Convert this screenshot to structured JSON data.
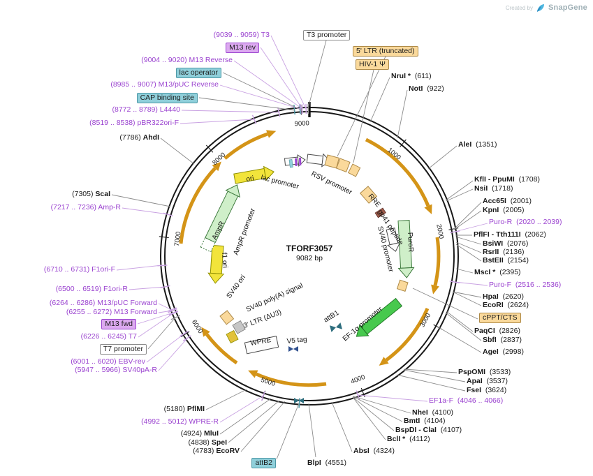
{
  "watermark": {
    "created_by": "Created by",
    "brand": "SnapGene"
  },
  "plasmid": {
    "name": "TFORF3057",
    "size_label": "9082 bp"
  },
  "tick_labels": [
    "1000",
    "2000",
    "3000",
    "4000",
    "5000",
    "6000",
    "7000",
    "8000",
    "9000"
  ],
  "colors": {
    "primer": "#9B44D0",
    "primer_line": "#C9A2E2",
    "enzyme": "#1A1A1A",
    "tan": "#FAD99B",
    "tan_border": "#AE8A48",
    "teal": "#8FCFDA",
    "teal_border": "#4E98A6",
    "purple_box": "#DCA9F0",
    "purple_box_border": "#9B44D0",
    "white_box_border": "#8C8C8C",
    "gold": "#D49417",
    "green": "#47C94E",
    "green_border": "#237A28",
    "pale_green": "#CFEFC9",
    "pale_green_border": "#3E7A3E",
    "yellow": "#F2E43B",
    "yellow_border": "#8E8E00",
    "maroon": "#9C5B4A",
    "att_site": "#2E6E7E",
    "v5": "#31518F"
  },
  "inner_labels": [
    {
      "text": "ori"
    },
    {
      "text": "lac promoter"
    },
    {
      "text": "RSV promoter"
    },
    {
      "text": "RRE"
    },
    {
      "text": "gp41 peptide"
    },
    {
      "text": "SV40 promoter"
    },
    {
      "text": "PuroR"
    },
    {
      "text": "EF-1α promoter"
    },
    {
      "text": "attB1"
    },
    {
      "text": "V5 tag"
    },
    {
      "text": "WPRE"
    },
    {
      "text": "3' LTR (ΔU3)"
    },
    {
      "text": "SV40 poly(A) signal"
    },
    {
      "text": "SV40 ori"
    },
    {
      "text": "f1 ori"
    },
    {
      "text": "AmpR"
    },
    {
      "text": "AmpR promoter"
    }
  ],
  "callouts": [
    {
      "id": "t3",
      "type": "primer",
      "parts": [
        {
          "text": "(9039 .. 9059) ",
          "kind": "coord"
        },
        {
          "text": "T3",
          "kind": "name"
        }
      ]
    },
    {
      "id": "m13-rev-box",
      "type": "box",
      "box": "purple",
      "parts": [
        {
          "text": "M13 rev",
          "kind": "name"
        }
      ]
    },
    {
      "id": "m13-reverse",
      "type": "primer",
      "parts": [
        {
          "text": "(9004 .. 9020) ",
          "kind": "coord"
        },
        {
          "text": "M13 Reverse",
          "kind": "name"
        }
      ]
    },
    {
      "id": "lac-operator-box",
      "type": "box",
      "box": "teal",
      "parts": [
        {
          "text": "lac operator",
          "kind": "name"
        }
      ]
    },
    {
      "id": "m13-puc-reverse",
      "type": "primer",
      "parts": [
        {
          "text": "(8985 .. 9007) ",
          "kind": "coord"
        },
        {
          "text": "M13/pUC Reverse",
          "kind": "name"
        }
      ]
    },
    {
      "id": "cap-binding-site-box",
      "type": "box",
      "box": "teal",
      "parts": [
        {
          "text": "CAP binding site",
          "kind": "name"
        }
      ]
    },
    {
      "id": "l4440",
      "type": "primer",
      "parts": [
        {
          "text": "(8772 .. 8789) ",
          "kind": "coord"
        },
        {
          "text": "L4440",
          "kind": "name"
        }
      ]
    },
    {
      "id": "pbr322ori-f",
      "type": "primer",
      "parts": [
        {
          "text": "(8519 .. 8538) ",
          "kind": "coord"
        },
        {
          "text": "pBR322ori-F",
          "kind": "name"
        }
      ]
    },
    {
      "id": "ahdi",
      "type": "enzyme",
      "parts": [
        {
          "text": "(7786) ",
          "kind": "coord"
        },
        {
          "text": "AhdI",
          "kind": "name"
        }
      ]
    },
    {
      "id": "scai",
      "type": "enzyme",
      "parts": [
        {
          "text": "(7305) ",
          "kind": "coord"
        },
        {
          "text": "ScaI",
          "kind": "name"
        }
      ]
    },
    {
      "id": "amp-r",
      "type": "primer",
      "parts": [
        {
          "text": "(7217 .. 7236) ",
          "kind": "coord"
        },
        {
          "text": "Amp-R",
          "kind": "name"
        }
      ]
    },
    {
      "id": "f1ori-f",
      "type": "primer",
      "parts": [
        {
          "text": "(6710 .. 6731) ",
          "kind": "coord"
        },
        {
          "text": "F1ori-F",
          "kind": "name"
        }
      ]
    },
    {
      "id": "f1ori-r",
      "type": "primer",
      "parts": [
        {
          "text": "(6500 .. 6519) ",
          "kind": "coord"
        },
        {
          "text": "F1ori-R",
          "kind": "name"
        }
      ]
    },
    {
      "id": "m13-puc-forward",
      "type": "primer",
      "parts": [
        {
          "text": "(6264 .. 6286) ",
          "kind": "coord"
        },
        {
          "text": "M13/pUC Forward",
          "kind": "name"
        }
      ]
    },
    {
      "id": "m13-forward",
      "type": "primer",
      "parts": [
        {
          "text": "(6255 .. 6272) ",
          "kind": "coord"
        },
        {
          "text": "M13 Forward",
          "kind": "name"
        }
      ]
    },
    {
      "id": "m13-fwd-box",
      "type": "box",
      "box": "purple",
      "parts": [
        {
          "text": "M13 fwd",
          "kind": "name"
        }
      ]
    },
    {
      "id": "t7",
      "type": "primer",
      "parts": [
        {
          "text": "(6226 .. 6245) ",
          "kind": "coord"
        },
        {
          "text": "T7",
          "kind": "name"
        }
      ]
    },
    {
      "id": "t7-promoter-box",
      "type": "box",
      "box": "white",
      "parts": [
        {
          "text": "T7 promoter",
          "kind": "name"
        }
      ]
    },
    {
      "id": "ebv-rev",
      "type": "primer",
      "parts": [
        {
          "text": "(6001 .. 6020) ",
          "kind": "coord"
        },
        {
          "text": "EBV-rev",
          "kind": "name"
        }
      ]
    },
    {
      "id": "sv40pa-r",
      "type": "primer",
      "parts": [
        {
          "text": "(5947 .. 5966) ",
          "kind": "coord"
        },
        {
          "text": "SV40pA-R",
          "kind": "name"
        }
      ]
    },
    {
      "id": "pflmi",
      "type": "enzyme",
      "parts": [
        {
          "text": "(5180) ",
          "kind": "coord"
        },
        {
          "text": "PflMI",
          "kind": "name"
        }
      ]
    },
    {
      "id": "wpre-r",
      "type": "primer",
      "parts": [
        {
          "text": "(4992 .. 5012) ",
          "kind": "coord"
        },
        {
          "text": "WPRE-R",
          "kind": "name"
        }
      ]
    },
    {
      "id": "mlui",
      "type": "enzyme",
      "parts": [
        {
          "text": "(4924) ",
          "kind": "coord"
        },
        {
          "text": "MluI",
          "kind": "name"
        }
      ]
    },
    {
      "id": "spei",
      "type": "enzyme",
      "parts": [
        {
          "text": "(4838) ",
          "kind": "coord"
        },
        {
          "text": "SpeI",
          "kind": "name"
        }
      ]
    },
    {
      "id": "ecorv",
      "type": "enzyme",
      "parts": [
        {
          "text": "(4783) ",
          "kind": "coord"
        },
        {
          "text": "EcoRV",
          "kind": "name"
        }
      ]
    },
    {
      "id": "attb2-box",
      "type": "box",
      "box": "teal",
      "parts": [
        {
          "text": "attB2",
          "kind": "name"
        }
      ]
    },
    {
      "id": "t3-promoter-box",
      "type": "box",
      "box": "white",
      "parts": [
        {
          "text": "T3 promoter",
          "kind": "name"
        }
      ]
    },
    {
      "id": "five-ltr-box",
      "type": "box",
      "box": "tan",
      "parts": [
        {
          "text": "5' LTR (truncated)",
          "kind": "name"
        }
      ]
    },
    {
      "id": "hiv1-psi-box",
      "type": "box",
      "box": "tan",
      "parts": [
        {
          "text": "HIV-1 Ψ",
          "kind": "name"
        }
      ]
    },
    {
      "id": "nrui",
      "type": "enzyme",
      "parts": [
        {
          "text": "NruI *",
          "kind": "name"
        },
        {
          "text": "  (611)",
          "kind": "coord"
        }
      ]
    },
    {
      "id": "noti",
      "type": "enzyme",
      "parts": [
        {
          "text": "NotI",
          "kind": "name"
        },
        {
          "text": "  (922)",
          "kind": "coord"
        }
      ]
    },
    {
      "id": "alei",
      "type": "enzyme",
      "parts": [
        {
          "text": "AleI",
          "kind": "name"
        },
        {
          "text": "  (1351)",
          "kind": "coord"
        }
      ]
    },
    {
      "id": "kfli-ppumi",
      "type": "enzyme",
      "parts": [
        {
          "text": "KflI - PpuMI",
          "kind": "name"
        },
        {
          "text": "  (1708)",
          "kind": "coord"
        }
      ]
    },
    {
      "id": "nsii",
      "type": "enzyme",
      "parts": [
        {
          "text": "NsiI",
          "kind": "name"
        },
        {
          "text": "  (1718)",
          "kind": "coord"
        }
      ]
    },
    {
      "id": "acc65i",
      "type": "enzyme",
      "parts": [
        {
          "text": "Acc65I",
          "kind": "name"
        },
        {
          "text": "  (2001)",
          "kind": "coord"
        }
      ]
    },
    {
      "id": "kpni",
      "type": "enzyme",
      "parts": [
        {
          "text": "KpnI",
          "kind": "name"
        },
        {
          "text": "  (2005)",
          "kind": "coord"
        }
      ]
    },
    {
      "id": "puro-r",
      "type": "primer",
      "parts": [
        {
          "text": "Puro-R",
          "kind": "name"
        },
        {
          "text": "  (2020 .. 2039)",
          "kind": "coord"
        }
      ]
    },
    {
      "id": "pflfi-tth111i",
      "type": "enzyme",
      "parts": [
        {
          "text": "PflFI - Tth111I",
          "kind": "name"
        },
        {
          "text": "  (2062)",
          "kind": "coord"
        }
      ]
    },
    {
      "id": "bsiwi",
      "type": "enzyme",
      "parts": [
        {
          "text": "BsiWI",
          "kind": "name"
        },
        {
          "text": "  (2076)",
          "kind": "coord"
        }
      ]
    },
    {
      "id": "rsrii",
      "type": "enzyme",
      "parts": [
        {
          "text": "RsrII",
          "kind": "name"
        },
        {
          "text": "  (2136)",
          "kind": "coord"
        }
      ]
    },
    {
      "id": "bsteii",
      "type": "enzyme",
      "parts": [
        {
          "text": "BstEII",
          "kind": "name"
        },
        {
          "text": "  (2154)",
          "kind": "coord"
        }
      ]
    },
    {
      "id": "msci",
      "type": "enzyme",
      "parts": [
        {
          "text": "MscI *",
          "kind": "name"
        },
        {
          "text": "  (2395)",
          "kind": "coord"
        }
      ]
    },
    {
      "id": "puro-f",
      "type": "primer",
      "parts": [
        {
          "text": "Puro-F",
          "kind": "name"
        },
        {
          "text": "  (2516 .. 2536)",
          "kind": "coord"
        }
      ]
    },
    {
      "id": "hpai",
      "type": "enzyme",
      "parts": [
        {
          "text": "HpaI",
          "kind": "name"
        },
        {
          "text": "  (2620)",
          "kind": "coord"
        }
      ]
    },
    {
      "id": "ecori",
      "type": "enzyme",
      "parts": [
        {
          "text": "EcoRI",
          "kind": "name"
        },
        {
          "text": "  (2624)",
          "kind": "coord"
        }
      ]
    },
    {
      "id": "cppt-cts-box",
      "type": "box",
      "box": "tan",
      "parts": [
        {
          "text": "cPPT/CTS",
          "kind": "name"
        }
      ]
    },
    {
      "id": "paqci",
      "type": "enzyme",
      "parts": [
        {
          "text": "PaqCI",
          "kind": "name"
        },
        {
          "text": "  (2826)",
          "kind": "coord"
        }
      ]
    },
    {
      "id": "sbfi",
      "type": "enzyme",
      "parts": [
        {
          "text": "SbfI",
          "kind": "name"
        },
        {
          "text": "  (2837)",
          "kind": "coord"
        }
      ]
    },
    {
      "id": "agei",
      "type": "enzyme",
      "parts": [
        {
          "text": "AgeI",
          "kind": "name"
        },
        {
          "text": "  (2998)",
          "kind": "coord"
        }
      ]
    },
    {
      "id": "pspomi",
      "type": "enzyme",
      "parts": [
        {
          "text": "PspOMI",
          "kind": "name"
        },
        {
          "text": "  (3533)",
          "kind": "coord"
        }
      ]
    },
    {
      "id": "apai",
      "type": "enzyme",
      "parts": [
        {
          "text": "ApaI",
          "kind": "name"
        },
        {
          "text": "  (3537)",
          "kind": "coord"
        }
      ]
    },
    {
      "id": "fsei",
      "type": "enzyme",
      "parts": [
        {
          "text": "FseI",
          "kind": "name"
        },
        {
          "text": "  (3624)",
          "kind": "coord"
        }
      ]
    },
    {
      "id": "ef1a-f",
      "type": "primer",
      "parts": [
        {
          "text": "EF1a-F",
          "kind": "name"
        },
        {
          "text": "  (4046 .. 4066)",
          "kind": "coord"
        }
      ]
    },
    {
      "id": "nhei",
      "type": "enzyme",
      "parts": [
        {
          "text": "NheI",
          "kind": "name"
        },
        {
          "text": "  (4100)",
          "kind": "coord"
        }
      ]
    },
    {
      "id": "bmti",
      "type": "enzyme",
      "parts": [
        {
          "text": "BmtI",
          "kind": "name"
        },
        {
          "text": "  (4104)",
          "kind": "coord"
        }
      ]
    },
    {
      "id": "bspdi-clai",
      "type": "enzyme",
      "parts": [
        {
          "text": "BspDI - ClaI",
          "kind": "name"
        },
        {
          "text": "  (4107)",
          "kind": "coord"
        }
      ]
    },
    {
      "id": "bcli",
      "type": "enzyme",
      "parts": [
        {
          "text": "BclI *",
          "kind": "name"
        },
        {
          "text": "  (4112)",
          "kind": "coord"
        }
      ]
    },
    {
      "id": "absi",
      "type": "enzyme",
      "parts": [
        {
          "text": "AbsI",
          "kind": "name"
        },
        {
          "text": "  (4324)",
          "kind": "coord"
        }
      ]
    },
    {
      "id": "blpi",
      "type": "enzyme",
      "parts": [
        {
          "text": "BlpI",
          "kind": "name"
        },
        {
          "text": "  (4551)",
          "kind": "coord"
        }
      ]
    }
  ]
}
